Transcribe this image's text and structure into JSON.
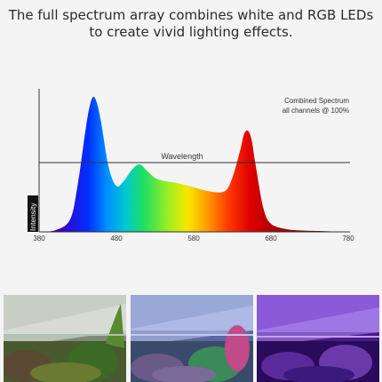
{
  "headline": {
    "line1": "The full spectrum array combines white and RGB LEDs",
    "line2": "to create vivid lighting effects."
  },
  "chart_data": {
    "type": "area",
    "legend_line1": "Combined Spectrum",
    "legend_line2": "all channels @ 100%",
    "xlabel": "Wavelength",
    "ylabel": "Intensity",
    "xlim": [
      380,
      780
    ],
    "xticks": [
      380,
      480,
      580,
      680,
      780
    ],
    "x": [
      380,
      400,
      420,
      430,
      440,
      445,
      450,
      455,
      460,
      470,
      480,
      490,
      500,
      510,
      520,
      530,
      540,
      550,
      560,
      580,
      600,
      620,
      630,
      640,
      645,
      650,
      655,
      660,
      670,
      680,
      700,
      720,
      750,
      780
    ],
    "y": [
      0.0,
      0.01,
      0.09,
      0.35,
      0.75,
      0.92,
      1.0,
      0.95,
      0.82,
      0.48,
      0.34,
      0.38,
      0.46,
      0.5,
      0.45,
      0.4,
      0.38,
      0.37,
      0.36,
      0.33,
      0.3,
      0.3,
      0.4,
      0.6,
      0.72,
      0.75,
      0.68,
      0.5,
      0.18,
      0.06,
      0.02,
      0.01,
      0.005,
      0.0
    ]
  },
  "photos": [
    {
      "name": "white-light-aquarium",
      "tint": "#c8d4c0"
    },
    {
      "name": "rgb-light-aquarium",
      "tint": "#8aa0d8"
    },
    {
      "name": "purple-light-aquarium",
      "tint": "#8c50d8"
    }
  ]
}
